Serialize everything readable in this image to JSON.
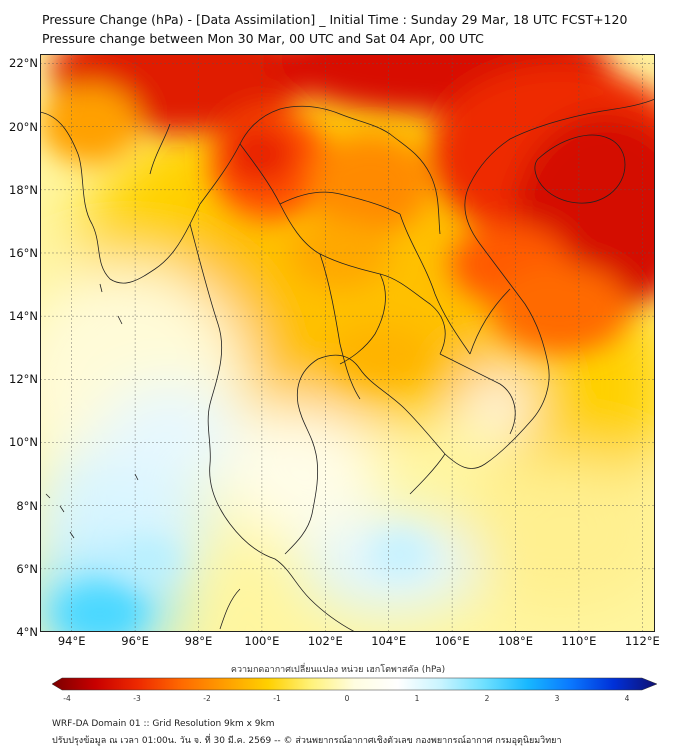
{
  "title_line1": "Pressure Change (hPa) - [Data Assimilation] _ Initial Time : Sunday 29 Mar, 18 UTC FCST+120",
  "title_line2": "Pressure change between Mon 30 Mar, 00 UTC and Sat 04 Apr, 00 UTC",
  "map": {
    "lat_range": [
      4,
      22.3
    ],
    "lon_range": [
      93,
      112.4
    ],
    "lat_labels": [
      "22°N",
      "20°N",
      "18°N",
      "16°N",
      "14°N",
      "12°N",
      "10°N",
      "8°N",
      "6°N",
      "4°N"
    ],
    "lat_values": [
      22,
      20,
      18,
      16,
      14,
      12,
      10,
      8,
      6,
      4
    ],
    "lon_labels": [
      "94°E",
      "96°E",
      "98°E",
      "100°E",
      "102°E",
      "104°E",
      "106°E",
      "108°E",
      "110°E",
      "112°E"
    ],
    "lon_values": [
      94,
      96,
      98,
      100,
      102,
      104,
      106,
      108,
      110,
      112
    ],
    "gridlines": true
  },
  "colorbar": {
    "title": "ความกดอากาศเปลี่ยนแปลง หน่วย เฮกโตพาสคัล (hPa)",
    "min": -4,
    "max": 4,
    "tick_labels": [
      "-4",
      "-3",
      "-2",
      "-1",
      "0",
      "1",
      "2",
      "3",
      "4"
    ],
    "colors": [
      "#7a0000",
      "#c80000",
      "#ee2a00",
      "#ff6a00",
      "#ff9e00",
      "#ffd000",
      "#fff27a",
      "#fffde0",
      "#ffffff",
      "#c8f4ff",
      "#6ee0ff",
      "#18b8ff",
      "#0a78ff",
      "#0030d8",
      "#101070"
    ]
  },
  "footer_line1": "WRF-DA Domain 01 :: Grid Resolution 9km x 9km",
  "footer_line2": "ปรับปรุงข้อมูล ณ เวลา 01:00น. วัน จ. ที่ 30 มี.ค. 2569 -- © ส่วนพยากรณ์อากาศเชิงตัวเลข กองพยากรณ์อากาศ กรมอุตุนิยมวิทยา"
}
